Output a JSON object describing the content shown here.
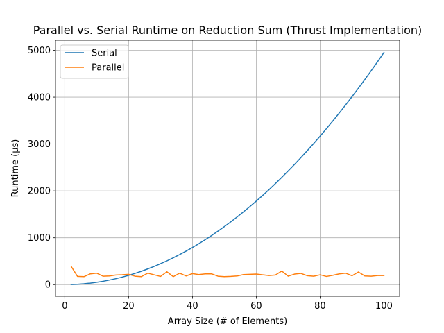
{
  "chart_data": {
    "type": "line",
    "title": "Parallel vs. Serial Runtime on Reduction Sum (Thrust Implementation)",
    "xlabel": "Array Size (# of Elements)",
    "ylabel": "Runtime (µs)",
    "xlim": [
      -2.9,
      104.9
    ],
    "ylim": [
      -248,
      5215
    ],
    "xticks": [
      0,
      20,
      40,
      60,
      80,
      100
    ],
    "yticks": [
      0,
      1000,
      2000,
      3000,
      4000,
      5000
    ],
    "grid": true,
    "legend_position": "top-left",
    "series": [
      {
        "name": "Serial",
        "color": "#1f77b4",
        "x": [
          2,
          4,
          6,
          8,
          10,
          12,
          14,
          16,
          18,
          20,
          22,
          24,
          26,
          28,
          30,
          32,
          34,
          36,
          38,
          40,
          42,
          44,
          46,
          48,
          50,
          52,
          54,
          56,
          58,
          60,
          62,
          64,
          66,
          68,
          70,
          72,
          74,
          76,
          78,
          80,
          82,
          84,
          86,
          88,
          90,
          92,
          94,
          96,
          98,
          100
        ],
        "y": [
          2,
          8,
          18,
          32,
          50,
          71,
          97,
          127,
          160,
          198,
          240,
          285,
          335,
          388,
          446,
          507,
          573,
          642,
          715,
          792,
          874,
          959,
          1048,
          1141,
          1238,
          1339,
          1444,
          1553,
          1666,
          1782,
          1903,
          2028,
          2157,
          2290,
          2427,
          2567,
          2712,
          2860,
          3013,
          3169,
          3330,
          3494,
          3663,
          3835,
          4012,
          4192,
          4376,
          4565,
          4757,
          4953
        ]
      },
      {
        "name": "Parallel",
        "color": "#ff7f0e",
        "x": [
          2,
          4,
          6,
          8,
          10,
          12,
          14,
          16,
          18,
          20,
          22,
          24,
          26,
          28,
          30,
          32,
          34,
          36,
          38,
          40,
          42,
          44,
          46,
          48,
          50,
          52,
          54,
          56,
          58,
          60,
          62,
          64,
          66,
          68,
          70,
          72,
          74,
          76,
          78,
          80,
          82,
          84,
          86,
          88,
          90,
          92,
          94,
          96,
          98,
          100
        ],
        "y": [
          390,
          175,
          170,
          230,
          245,
          180,
          185,
          205,
          210,
          220,
          180,
          170,
          245,
          210,
          175,
          275,
          170,
          245,
          185,
          235,
          215,
          230,
          230,
          180,
          170,
          175,
          185,
          215,
          220,
          225,
          210,
          195,
          205,
          290,
          180,
          225,
          240,
          190,
          180,
          210,
          175,
          200,
          230,
          245,
          190,
          270,
          185,
          180,
          195,
          195
        ]
      }
    ]
  }
}
